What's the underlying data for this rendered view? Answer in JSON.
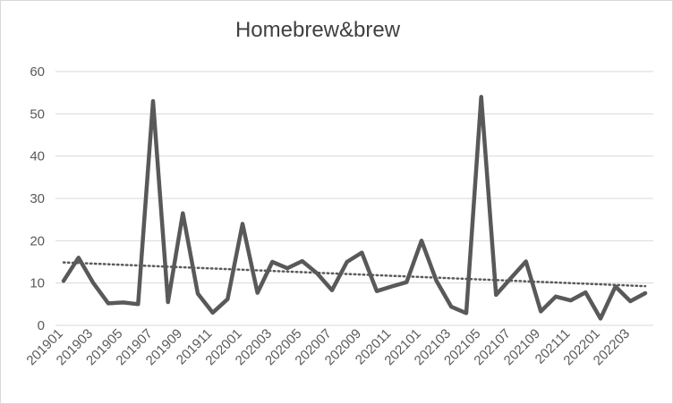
{
  "chart_data": {
    "type": "line",
    "title": "Homebrew&brew",
    "xlabel": "",
    "ylabel": "",
    "ylim": [
      0,
      60
    ],
    "yticks": [
      "0",
      "10",
      "20",
      "30",
      "40",
      "50",
      "60"
    ],
    "grid": true,
    "legend": "none",
    "x": [
      "201901",
      "201902",
      "201903",
      "201904",
      "201905",
      "201906",
      "201907",
      "201908",
      "201909",
      "201910",
      "201911",
      "201912",
      "202001",
      "202002",
      "202003",
      "202004",
      "202005",
      "202006",
      "202007",
      "202008",
      "202009",
      "202010",
      "202011",
      "202012",
      "202101",
      "202102",
      "202103",
      "202104",
      "202105",
      "202106",
      "202107",
      "202108",
      "202109",
      "202110",
      "202111",
      "202112",
      "202201",
      "202202",
      "202203",
      "202204"
    ],
    "x_tick_labels": [
      "201901",
      "201903",
      "201905",
      "201907",
      "201909",
      "201911",
      "202001",
      "202003",
      "202005",
      "202007",
      "202009",
      "202011",
      "202101",
      "202103",
      "202105",
      "202107",
      "202109",
      "202111",
      "202201",
      "202203"
    ],
    "series": [
      {
        "values": [
          10.5,
          16,
          10,
          5.2,
          5.4,
          5,
          53,
          5.5,
          26.5,
          7.5,
          3,
          6.2,
          24,
          7.7,
          15,
          13.5,
          15.2,
          12.3,
          8.3,
          15,
          17.2,
          8.1,
          9.2,
          10.2,
          20,
          10.5,
          4.4,
          2.9,
          54,
          7.2,
          11.2,
          15.1,
          3.3,
          6.8,
          5.9,
          7.8,
          1.6,
          9.2,
          5.7,
          7.6
        ],
        "color": "#595959"
      }
    ],
    "trendline": {
      "type": "linear",
      "style": "dotted",
      "color": "#595959"
    }
  }
}
